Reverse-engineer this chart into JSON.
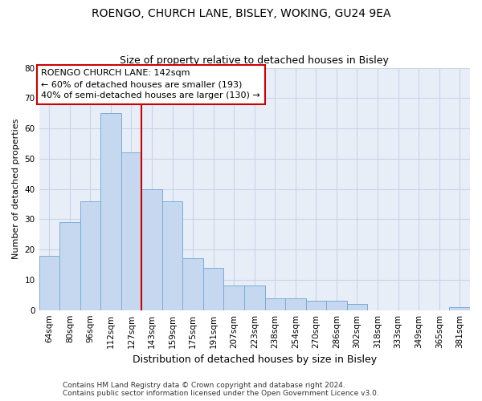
{
  "title_line1": "ROENGO, CHURCH LANE, BISLEY, WOKING, GU24 9EA",
  "title_line2": "Size of property relative to detached houses in Bisley",
  "xlabel": "Distribution of detached houses by size in Bisley",
  "ylabel": "Number of detached properties",
  "footer_line1": "Contains HM Land Registry data © Crown copyright and database right 2024.",
  "footer_line2": "Contains public sector information licensed under the Open Government Licence v3.0.",
  "annotation_line1": "ROENGO CHURCH LANE: 142sqm",
  "annotation_line2": "← 60% of detached houses are smaller (193)",
  "annotation_line3": "40% of semi-detached houses are larger (130) →",
  "categories": [
    "64sqm",
    "80sqm",
    "96sqm",
    "112sqm",
    "127sqm",
    "143sqm",
    "159sqm",
    "175sqm",
    "191sqm",
    "207sqm",
    "223sqm",
    "238sqm",
    "254sqm",
    "270sqm",
    "286sqm",
    "302sqm",
    "318sqm",
    "333sqm",
    "349sqm",
    "365sqm",
    "381sqm"
  ],
  "values": [
    18,
    29,
    36,
    65,
    52,
    40,
    36,
    17,
    14,
    8,
    8,
    4,
    4,
    3,
    3,
    2,
    0,
    0,
    0,
    0,
    1
  ],
  "bar_color": "#c5d8f0",
  "bar_edge_color": "#7aadd4",
  "vline_color": "#cc0000",
  "grid_color": "#c8d4e8",
  "bg_color": "#e8eef8",
  "fig_bg": "#ffffff",
  "ylim": [
    0,
    80
  ],
  "yticks": [
    0,
    10,
    20,
    30,
    40,
    50,
    60,
    70,
    80
  ],
  "vline_index": 5,
  "annotation_box_color": "white",
  "annotation_box_edge": "#cc0000",
  "title1_fontsize": 10,
  "title2_fontsize": 9,
  "ylabel_fontsize": 8,
  "xlabel_fontsize": 9,
  "tick_fontsize": 7.5,
  "footer_fontsize": 6.5,
  "annot_fontsize": 8
}
